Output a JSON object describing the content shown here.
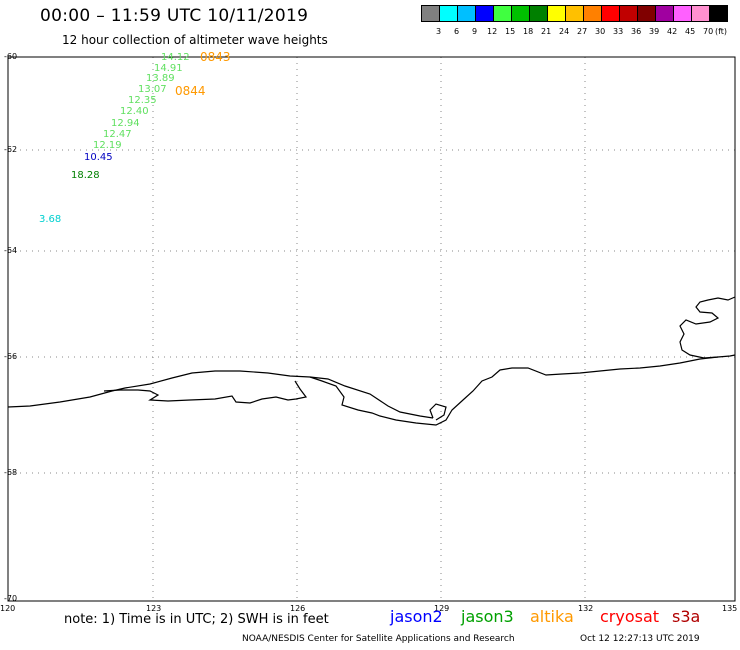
{
  "title": "00:00 – 11:59 UTC 10/11/2019",
  "subtitle": "12 hour collection of altimeter wave heights",
  "scale": {
    "colors": [
      "#808080",
      "#00ffff",
      "#00bfff",
      "#0000ff",
      "#40ff40",
      "#00c000",
      "#008000",
      "#ffff00",
      "#ffc000",
      "#ff8000",
      "#ff0000",
      "#c00000",
      "#800000",
      "#a000a0",
      "#ff60ff",
      "#ff90d0",
      "#000000"
    ],
    "labels": [
      "3",
      "6",
      "9",
      "12",
      "15",
      "18",
      "21",
      "24",
      "27",
      "30",
      "33",
      "36",
      "39",
      "42",
      "45",
      "70"
    ],
    "unit": "(ft)"
  },
  "lat_labels": [
    "-60",
    "-62",
    "-64",
    "-66",
    "-68",
    "-70"
  ],
  "lon_labels": [
    "120",
    "123",
    "126",
    "129",
    "132",
    "135"
  ],
  "observations": [
    {
      "value": "14.12",
      "color": "#60e060"
    },
    {
      "value": "14.91",
      "color": "#60e060"
    },
    {
      "value": "13.89",
      "color": "#60e060"
    },
    {
      "value": "13.07",
      "color": "#60e060"
    },
    {
      "value": "12.35",
      "color": "#60e060"
    },
    {
      "value": "12.40",
      "color": "#60e060"
    },
    {
      "value": "12.94",
      "color": "#60e060"
    },
    {
      "value": "12.47",
      "color": "#60e060"
    },
    {
      "value": "12.19",
      "color": "#60e060"
    },
    {
      "value": "10.45",
      "color": "#0000c0"
    },
    {
      "value": "18.28",
      "color": "#008000"
    },
    {
      "value": "3.68",
      "color": "#00d0d0"
    }
  ],
  "time_labels": [
    {
      "value": "0843",
      "color": "#ff9900"
    },
    {
      "value": "0844",
      "color": "#ff9900"
    }
  ],
  "note": "note: 1) Time is in UTC; 2) SWH is in feet",
  "satellites": [
    {
      "name": "jason2",
      "color": "#0000ff"
    },
    {
      "name": "jason3",
      "color": "#00a000"
    },
    {
      "name": "altika",
      "color": "#ff9900"
    },
    {
      "name": "cryosat",
      "color": "#ff0000"
    },
    {
      "name": "s3a",
      "color": "#b00000"
    }
  ],
  "credit": "NOAA/NESDIS Center for Satellite Applications and Research",
  "timestamp": "Oct 12 12:27:13 UTC 2019"
}
